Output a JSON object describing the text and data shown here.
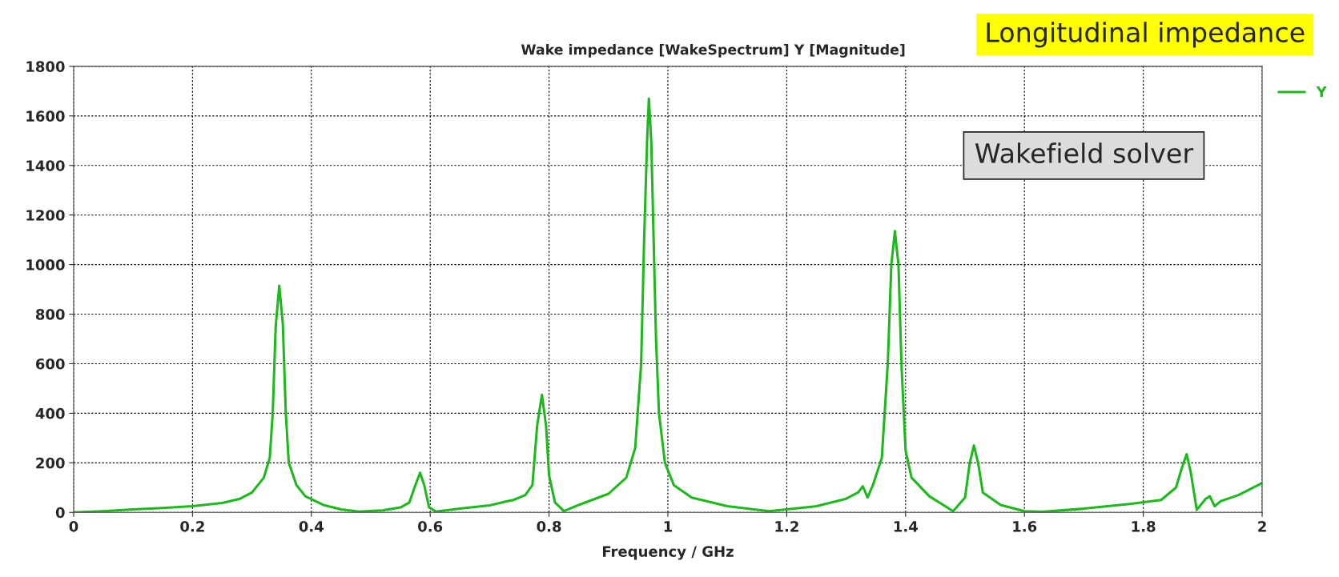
{
  "chart_data": {
    "type": "line",
    "title": "Wake impedance [WakeSpectrum] Y [Magnitude]",
    "xlabel": "Frequency / GHz",
    "annotations": [
      "Longitudinal impedance",
      "Wakefield solver"
    ],
    "xlim": [
      0,
      2
    ],
    "xticks": [
      0,
      0.2,
      0.4,
      0.6,
      0.8,
      1,
      1.2,
      1.4,
      1.6,
      1.8,
      2
    ],
    "ylim": [
      0,
      1800
    ],
    "yticks": [
      0,
      200,
      400,
      600,
      800,
      1000,
      1200,
      1400,
      1600,
      1800
    ],
    "grid": true,
    "legend": "top right",
    "line_style": "solid",
    "marker": "none",
    "series": [
      {
        "name": "Y",
        "color": "#1cb81c",
        "x": [
          0,
          0.05,
          0.1,
          0.15,
          0.2,
          0.25,
          0.28,
          0.3,
          0.32,
          0.33,
          0.335,
          0.34,
          0.346,
          0.352,
          0.357,
          0.362,
          0.375,
          0.39,
          0.42,
          0.45,
          0.48,
          0.52,
          0.55,
          0.565,
          0.575,
          0.583,
          0.59,
          0.598,
          0.61,
          0.65,
          0.7,
          0.73,
          0.74,
          0.76,
          0.772,
          0.78,
          0.788,
          0.795,
          0.8,
          0.81,
          0.825,
          0.85,
          0.9,
          0.93,
          0.945,
          0.955,
          0.96,
          0.965,
          0.968,
          0.972,
          0.976,
          0.98,
          0.985,
          0.995,
          1.01,
          1.04,
          1.1,
          1.17,
          1.25,
          1.3,
          1.32,
          1.328,
          1.336,
          1.345,
          1.36,
          1.37,
          1.376,
          1.382,
          1.388,
          1.393,
          1.4,
          1.41,
          1.44,
          1.48,
          1.5,
          1.508,
          1.515,
          1.522,
          1.53,
          1.56,
          1.6,
          1.63,
          1.7,
          1.78,
          1.83,
          1.855,
          1.865,
          1.873,
          1.88,
          1.89,
          1.905,
          1.912,
          1.92,
          1.93,
          1.96,
          2.0
        ],
        "values": [
          0,
          5,
          12,
          18,
          25,
          38,
          55,
          80,
          140,
          220,
          400,
          750,
          915,
          760,
          400,
          200,
          110,
          65,
          30,
          12,
          3,
          8,
          20,
          40,
          110,
          160,
          110,
          20,
          3,
          15,
          28,
          45,
          50,
          70,
          110,
          350,
          475,
          350,
          150,
          40,
          5,
          30,
          75,
          140,
          260,
          600,
          1100,
          1500,
          1670,
          1500,
          1100,
          700,
          400,
          200,
          110,
          60,
          25,
          5,
          25,
          55,
          80,
          105,
          60,
          110,
          220,
          600,
          1000,
          1135,
          1000,
          600,
          250,
          140,
          65,
          5,
          60,
          200,
          270,
          200,
          80,
          30,
          5,
          2,
          15,
          35,
          50,
          100,
          180,
          235,
          160,
          10,
          55,
          65,
          25,
          45,
          70,
          118
        ]
      }
    ]
  }
}
